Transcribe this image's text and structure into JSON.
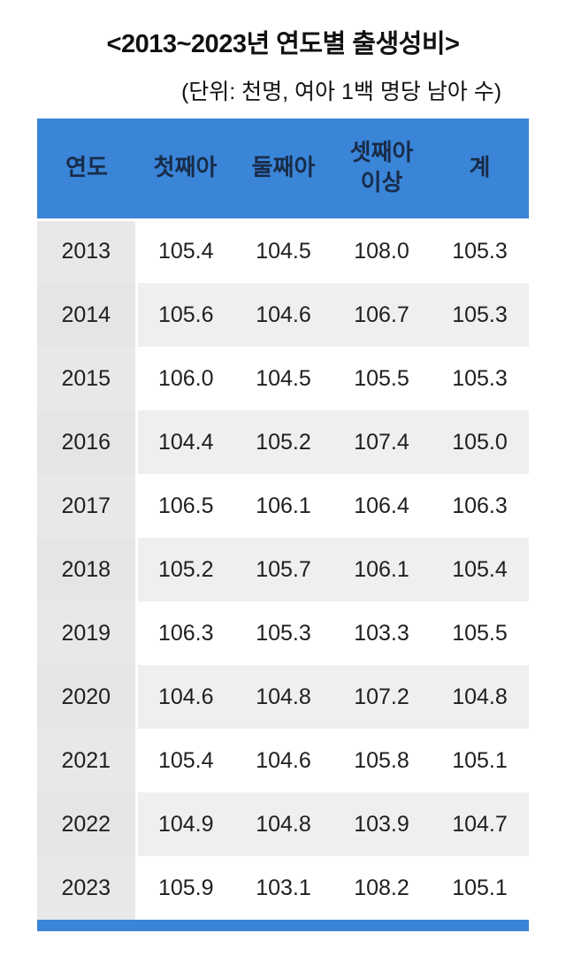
{
  "page": {
    "title": "<2013~2023년 연도별 출생성비>",
    "subtitle": "(단위: 천명, 여아 1백 명당 남아 수)"
  },
  "table": {
    "columns": [
      "연도",
      "첫째아",
      "둘째아",
      "셋째아 이상",
      "계"
    ],
    "rows": [
      [
        "2013",
        "105.4",
        "104.5",
        "108.0",
        "105.3"
      ],
      [
        "2014",
        "105.6",
        "104.6",
        "106.7",
        "105.3"
      ],
      [
        "2015",
        "106.0",
        "104.5",
        "105.5",
        "105.3"
      ],
      [
        "2016",
        "104.4",
        "105.2",
        "107.4",
        "105.0"
      ],
      [
        "2017",
        "106.5",
        "106.1",
        "106.4",
        "106.3"
      ],
      [
        "2018",
        "105.2",
        "105.7",
        "106.1",
        "105.4"
      ],
      [
        "2019",
        "106.3",
        "105.3",
        "103.3",
        "105.5"
      ],
      [
        "2020",
        "104.6",
        "104.8",
        "107.2",
        "104.8"
      ],
      [
        "2021",
        "105.4",
        "104.6",
        "105.8",
        "105.1"
      ],
      [
        "2022",
        "104.9",
        "104.8",
        "103.9",
        "104.7"
      ],
      [
        "2023",
        "105.9",
        "103.1",
        "108.2",
        "105.1"
      ]
    ]
  },
  "colors": {
    "header_bg": "#3a85d8",
    "header_text": "#182c49",
    "footer_bar": "#3a85d8",
    "year_column_bg": "#e8e8e8",
    "alt_row_bg": "#efefef",
    "row_bg": "#ffffff",
    "body_text": "#1f1f1f"
  },
  "chart_data": {
    "type": "table",
    "title": "2013~2023년 연도별 출생성비",
    "unit_note": "단위: 천명, 여아 1백 명당 남아 수",
    "columns": [
      "연도",
      "첫째아",
      "둘째아",
      "셋째아 이상",
      "계"
    ],
    "rows": [
      [
        2013,
        105.4,
        104.5,
        108.0,
        105.3
      ],
      [
        2014,
        105.6,
        104.6,
        106.7,
        105.3
      ],
      [
        2015,
        106.0,
        104.5,
        105.5,
        105.3
      ],
      [
        2016,
        104.4,
        105.2,
        107.4,
        105.0
      ],
      [
        2017,
        106.5,
        106.1,
        106.4,
        106.3
      ],
      [
        2018,
        105.2,
        105.7,
        106.1,
        105.4
      ],
      [
        2019,
        106.3,
        105.3,
        103.3,
        105.5
      ],
      [
        2020,
        104.6,
        104.8,
        107.2,
        104.8
      ],
      [
        2021,
        105.4,
        104.6,
        105.8,
        105.1
      ],
      [
        2022,
        104.9,
        104.8,
        103.9,
        104.7
      ],
      [
        2023,
        105.9,
        103.1,
        108.2,
        105.1
      ]
    ]
  }
}
